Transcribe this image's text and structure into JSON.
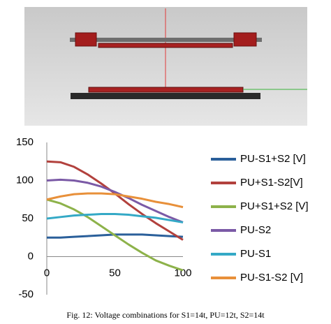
{
  "chart_data": {
    "type": "line",
    "x": [
      0,
      10,
      20,
      30,
      40,
      50,
      60,
      70,
      80,
      90,
      100
    ],
    "xlim": [
      0,
      100
    ],
    "xticks": [
      0,
      50,
      100
    ],
    "ylim": [
      -50,
      150
    ],
    "yticks": [
      -50,
      0,
      50,
      100,
      150
    ],
    "legend": "right",
    "series": [
      {
        "name": "PU-S1+S2 [V]",
        "color": "#2a5f9a",
        "values": [
          25,
          25,
          26,
          27,
          28,
          29,
          29,
          29,
          28,
          27,
          26
        ]
      },
      {
        "name": "PU+S1-S2[V]",
        "color": "#b2413d",
        "values": [
          125,
          124,
          118,
          108,
          96,
          83,
          69,
          56,
          44,
          33,
          22
        ]
      },
      {
        "name": "PU+S1+S2 [V]",
        "color": "#8db24a",
        "values": [
          75,
          70,
          62,
          52,
          40,
          28,
          16,
          5,
          -5,
          -12,
          -18
        ]
      },
      {
        "name": "PU-S2",
        "color": "#7b5aa6",
        "values": [
          100,
          101,
          100,
          97,
          92,
          85,
          77,
          68,
          60,
          52,
          45
        ]
      },
      {
        "name": "PU-S1",
        "color": "#34a9c6",
        "values": [
          50,
          52,
          54,
          55,
          56,
          56,
          55,
          53,
          51,
          48,
          45
        ]
      },
      {
        "name": "PU-S1-S2 [V]",
        "color": "#e8903a",
        "values": [
          75,
          79,
          82,
          83,
          83,
          82,
          79,
          76,
          72,
          69,
          65
        ]
      }
    ]
  },
  "caption": "Fig. 12: Voltage combinations for S1=14t, PU=12t, S2=14t"
}
